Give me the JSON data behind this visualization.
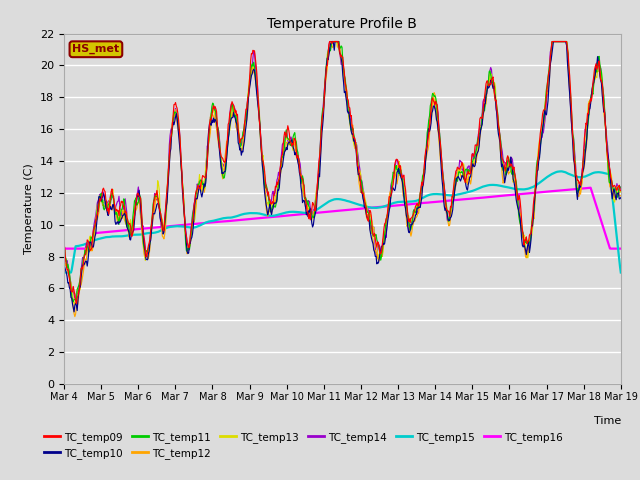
{
  "title": "Temperature Profile B",
  "xlabel": "Time",
  "ylabel": "Temperature (C)",
  "ylim": [
    0,
    22
  ],
  "yticks": [
    0,
    2,
    4,
    6,
    8,
    10,
    12,
    14,
    16,
    18,
    20,
    22
  ],
  "annotation_text": "HS_met",
  "annotation_color": "#8B0000",
  "annotation_bg": "#D4C400",
  "series_colors": {
    "TC_temp09": "#FF0000",
    "TC_temp10": "#00008B",
    "TC_temp11": "#00CC00",
    "TC_temp12": "#FFA500",
    "TC_temp13": "#DDDD00",
    "TC_temp14": "#9900CC",
    "TC_temp15": "#00CCCC",
    "TC_temp16": "#FF00FF"
  },
  "background_color": "#DCDCDC",
  "plot_bg": "#DCDCDC",
  "grid_color": "#FFFFFF",
  "n_points": 720,
  "x_start": 0,
  "x_end": 15,
  "xtick_labels": [
    "Mar 4",
    "Mar 5",
    "Mar 6",
    "Mar 7",
    "Mar 8",
    "Mar 9",
    "Mar 10",
    "Mar 11",
    "Mar 12",
    "Mar 13",
    "Mar 14",
    "Mar 15",
    "Mar 16",
    "Mar 17",
    "Mar 18",
    "Mar 19"
  ],
  "xtick_positions": [
    0,
    1,
    2,
    3,
    4,
    5,
    6,
    7,
    8,
    9,
    10,
    11,
    12,
    13,
    14,
    15
  ]
}
